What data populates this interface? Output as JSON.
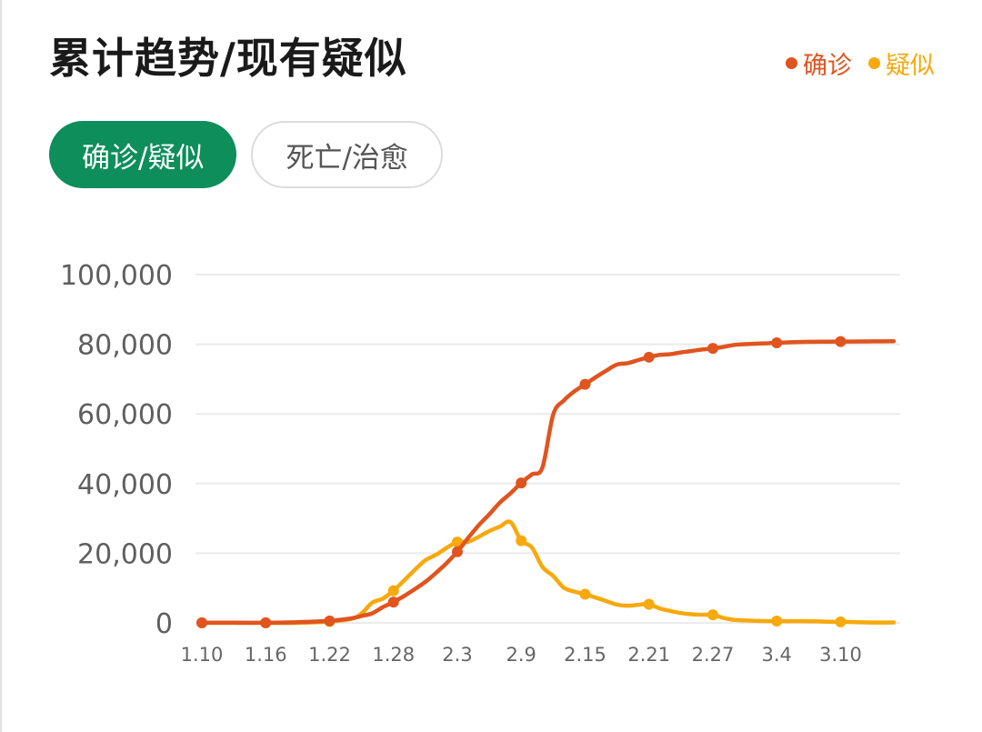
{
  "header": {
    "title": "累计趋势/现有疑似"
  },
  "legend": [
    {
      "label": "确诊",
      "color": "#e0541f"
    },
    {
      "label": "疑似",
      "color": "#f7a90d"
    }
  ],
  "tabs": [
    {
      "label": "确诊/疑似",
      "active": true
    },
    {
      "label": "死亡/治愈",
      "active": false
    }
  ],
  "colors": {
    "active_tab": "#0d8e5a",
    "grid": "#ebebeb"
  },
  "chart_data": {
    "type": "line",
    "x": [
      "1.10",
      "1.13",
      "1.16",
      "1.19",
      "1.22",
      "1.24",
      "1.25",
      "1.26",
      "1.27",
      "1.28",
      "1.29",
      "1.30",
      "1.31",
      "2.1",
      "2.2",
      "2.3",
      "2.4",
      "2.5",
      "2.6",
      "2.7",
      "2.8",
      "2.9",
      "2.10",
      "2.11",
      "2.12",
      "2.13",
      "2.14",
      "2.15",
      "2.16",
      "2.17",
      "2.18",
      "2.19",
      "2.20",
      "2.21",
      "2.22",
      "2.23",
      "2.24",
      "2.25",
      "2.26",
      "2.27",
      "2.28",
      "2.29",
      "3.1",
      "3.2",
      "3.3",
      "3.4",
      "3.5",
      "3.6",
      "3.7",
      "3.8",
      "3.9",
      "3.10",
      "3.11",
      "3.12",
      "3.13",
      "3.14",
      "3.15"
    ],
    "xticks": [
      "1.10",
      "1.16",
      "1.22",
      "1.28",
      "2.3",
      "2.9",
      "2.15",
      "2.21",
      "2.27",
      "3.4",
      "3.10"
    ],
    "markers": [
      "1.10",
      "1.16",
      "1.22",
      "1.28",
      "2.3",
      "2.9",
      "2.15",
      "2.21",
      "2.27",
      "3.4",
      "3.10"
    ],
    "yticks": [
      "0",
      "20,000",
      "40,000",
      "60,000",
      "80,000",
      "100,000"
    ],
    "ylim": [
      0,
      100000
    ],
    "series": [
      {
        "name": "确诊",
        "values": [
          41,
          41,
          45,
          198,
          571,
          1287,
          1975,
          2744,
          4515,
          5974,
          7711,
          9692,
          11791,
          14380,
          17205,
          20438,
          24324,
          28018,
          31161,
          34546,
          37198,
          40171,
          42638,
          44653,
          59804,
          63851,
          66492,
          68500,
          70548,
          72436,
          74185,
          74576,
          75465,
          76288,
          76936,
          77150,
          77658,
          78064,
          78497,
          78824,
          79251,
          79824,
          80026,
          80151,
          80270,
          80409,
          80552,
          80651,
          80695,
          80735,
          80754,
          80778,
          80793,
          80813,
          80824,
          80844,
          80860
        ]
      },
      {
        "name": "疑似",
        "values": [
          0,
          0,
          0,
          0,
          393,
          1118,
          2684,
          5794,
          6973,
          9239,
          12167,
          15238,
          17988,
          19544,
          21558,
          23214,
          23260,
          24702,
          26359,
          27657,
          28942,
          23589,
          21675,
          16067,
          13435,
          10109,
          8969,
          8228,
          7264,
          6242,
          5248,
          4922,
          5206,
          5365,
          4148,
          3434,
          2824,
          2491,
          2358,
          2308,
          1418,
          851,
          715,
          587,
          520,
          522,
          482,
          502,
          458,
          421,
          318,
          285,
          253,
          147,
          115,
          113,
          134
        ]
      }
    ]
  }
}
